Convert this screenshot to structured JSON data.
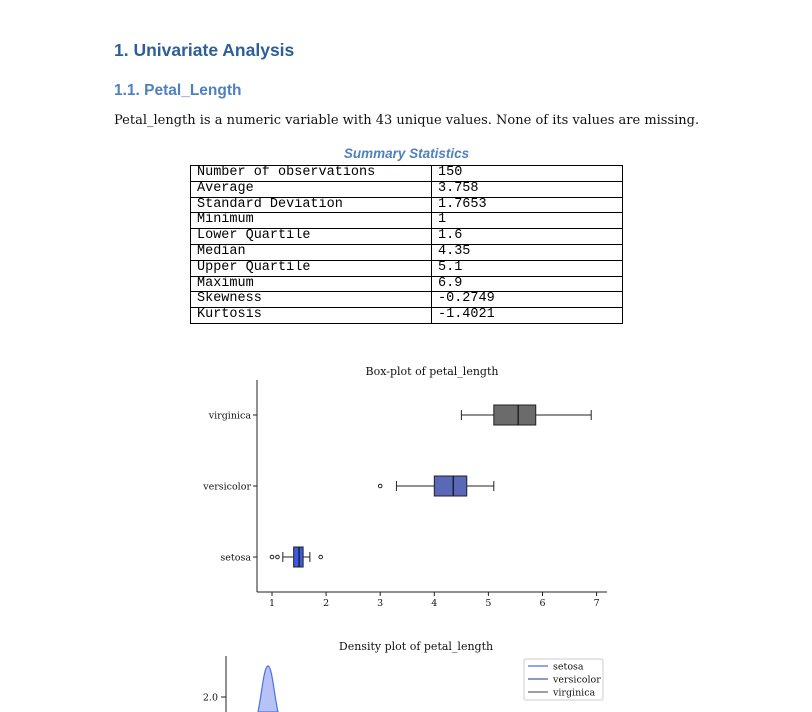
{
  "document": {
    "section_title": "1. Univariate Analysis",
    "subsection_title": "1.1. Petal_Length",
    "intro_text": "Petal_length is a numeric variable with 43 unique values. None of its values are missing.",
    "table_caption": "Summary Statistics"
  },
  "summary_statistics": [
    {
      "label": "Number of observations",
      "value": "150"
    },
    {
      "label": "Average",
      "value": "3.758"
    },
    {
      "label": "Standard Deviation",
      "value": "1.7653"
    },
    {
      "label": "Minimum",
      "value": "1"
    },
    {
      "label": "Lower Quartile",
      "value": "1.6"
    },
    {
      "label": "Median",
      "value": "4.35"
    },
    {
      "label": "Upper Quartile",
      "value": "5.1"
    },
    {
      "label": "Maximum",
      "value": "6.9"
    },
    {
      "label": "Skewness",
      "value": "-0.2749"
    },
    {
      "label": "Kurtosis",
      "value": "-1.4021"
    }
  ],
  "chart_data": [
    {
      "type": "box",
      "title": "Box-plot of petal_length",
      "xlabel": "",
      "ylabel": "",
      "xlim": [
        0.7,
        7.2
      ],
      "xticks": [
        1,
        2,
        3,
        4,
        5,
        6,
        7
      ],
      "grid": false,
      "categories": [
        "virginica",
        "versicolor",
        "setosa"
      ],
      "boxes": [
        {
          "category": "virginica",
          "whisker_low": 4.5,
          "q1": 5.1,
          "median": 5.55,
          "q3": 5.875,
          "whisker_high": 6.9,
          "outliers": [],
          "color": "#6b6b6b"
        },
        {
          "category": "versicolor",
          "whisker_low": 3.3,
          "q1": 4.0,
          "median": 4.35,
          "q3": 4.6,
          "whisker_high": 5.1,
          "outliers": [
            3.0
          ],
          "color": "#5a68b8"
        },
        {
          "category": "setosa",
          "whisker_low": 1.2,
          "q1": 1.4,
          "median": 1.5,
          "q3": 1.575,
          "whisker_high": 1.7,
          "outliers": [
            1.0,
            1.1,
            1.9
          ],
          "color": "#3d5be0"
        }
      ]
    },
    {
      "type": "area",
      "title": "Density plot of petal_length",
      "xlabel": "",
      "ylabel": "",
      "yticks": [
        2.0
      ],
      "legend_placement": "top-right",
      "series": [
        {
          "name": "setosa",
          "color": "#4d6fe8"
        },
        {
          "name": "versicolor",
          "color": "#4a5bb0"
        },
        {
          "name": "virginica",
          "color": "#666666"
        }
      ]
    }
  ]
}
